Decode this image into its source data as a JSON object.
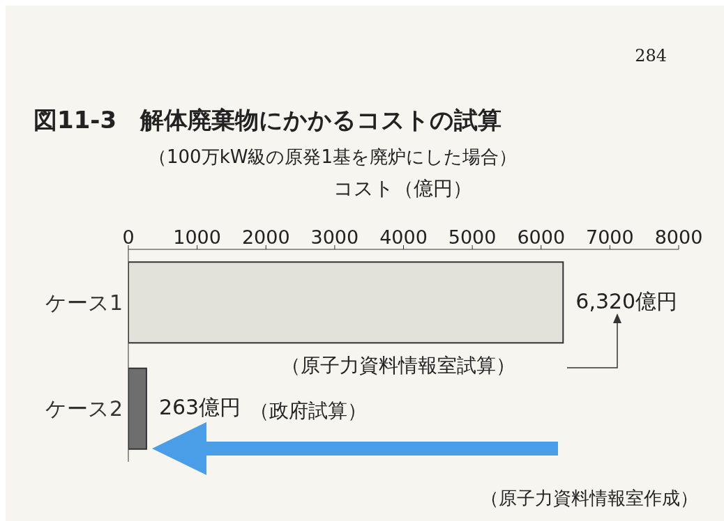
{
  "chart_data": {
    "type": "bar",
    "orientation": "horizontal",
    "title": "図11-3　解体廃棄物にかかるコストの試算",
    "subtitle": "（100万kW級の原発1基を廃炉にした場合）",
    "xlabel": "コスト（億円）",
    "categories": [
      "ケース1",
      "ケース2"
    ],
    "values": [
      6320,
      263
    ],
    "colors": [
      "#e2e2da",
      "#6e6e6e"
    ],
    "value_labels": [
      "6,320億円",
      "263億円"
    ],
    "xlim": [
      0,
      8000
    ],
    "xticks": [
      0,
      1000,
      2000,
      3000,
      4000,
      5000,
      6000,
      7000,
      8000
    ],
    "annotations": [
      "284",
      "（原子力資料情報室試算）",
      "（政府試算）",
      "（原子力資料情報室作成）"
    ]
  }
}
